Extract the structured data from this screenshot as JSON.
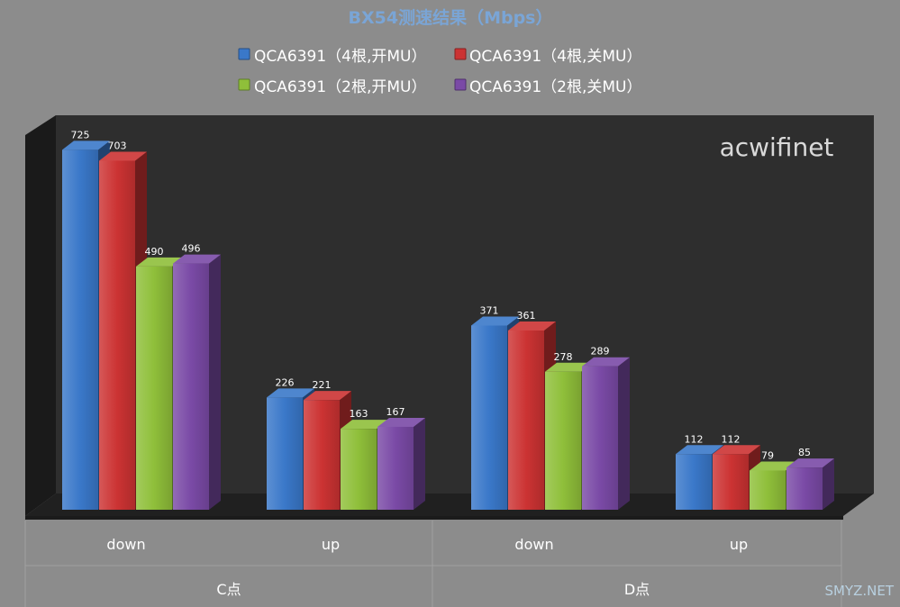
{
  "chart_data": {
    "type": "bar",
    "title": "BX54测速结果（Mbps）",
    "categories": [
      "down",
      "up",
      "down",
      "up"
    ],
    "groups": [
      "C点",
      "D点"
    ],
    "series": [
      {
        "name": "QCA6391（4根,开MU）",
        "values": [
          725,
          226,
          371,
          112
        ]
      },
      {
        "name": "QCA6391（4根,关MU）",
        "values": [
          703,
          221,
          361,
          112
        ]
      },
      {
        "name": "QCA6391（2根,开MU）",
        "values": [
          490,
          163,
          278,
          79
        ]
      },
      {
        "name": "QCA6391（2根,关MU）",
        "values": [
          496,
          167,
          289,
          85
        ]
      }
    ],
    "ylim": [
      0,
      800
    ],
    "grid": false,
    "legend_position": "top",
    "style": "3d-column"
  },
  "colors": {
    "series": [
      "#3a78c9",
      "#cc3333",
      "#8fbf3a",
      "#7a4aa6"
    ],
    "title": "#7aa5d6",
    "watermark": "#d9d9d9",
    "source": "#b8d0e0"
  },
  "watermark": "acwifinet",
  "source_mark": "SMYZ.NET"
}
